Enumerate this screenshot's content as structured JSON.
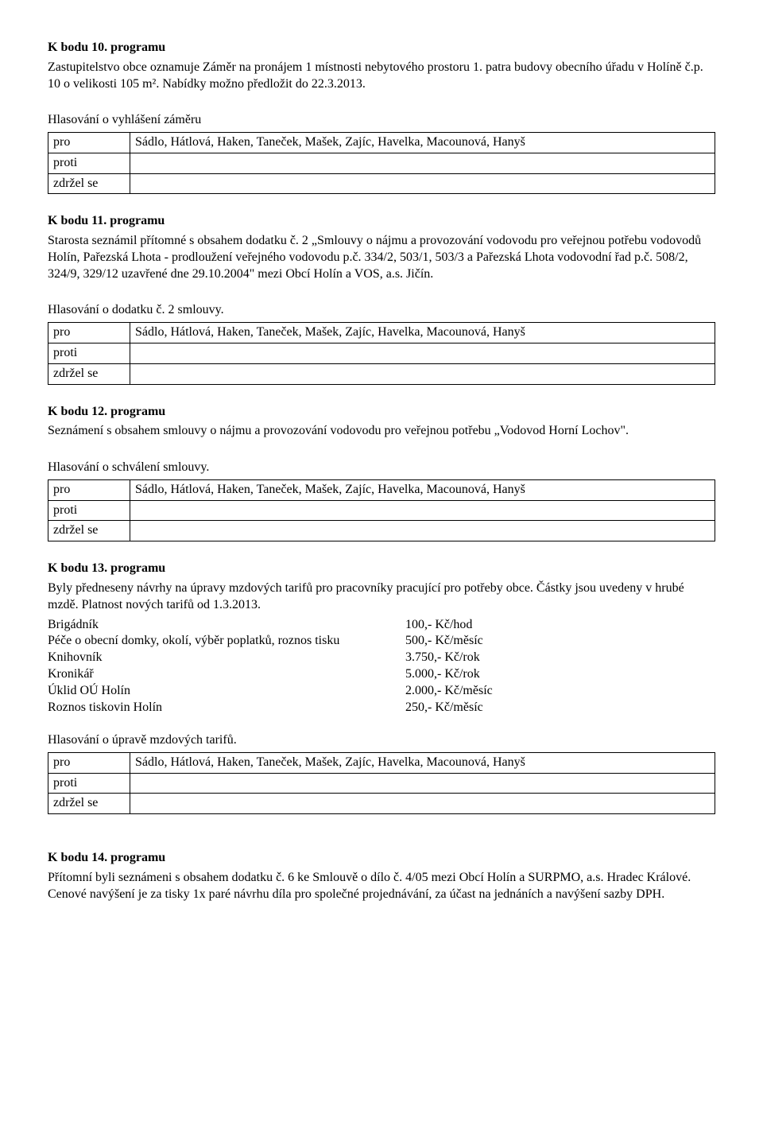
{
  "s10": {
    "heading": "K bodu 10. programu",
    "para": "Zastupitelstvo obce oznamuje Záměr na pronájem 1 místnosti nebytového prostoru 1. patra budovy obecního úřadu v Holíně č.p. 10 o velikosti 105 m². Nabídky možno předložit do 22.3.2013.",
    "voteTitle": "Hlasování o vyhlášení záměru",
    "vote": {
      "proLabel": "pro",
      "proValue": "Sádlo, Hátlová, Haken, Taneček, Mašek, Zajíc, Havelka, Macounová, Hanyš",
      "protiLabel": "proti",
      "protiValue": "",
      "zdrzelLabel": "zdržel se",
      "zdrzelValue": ""
    }
  },
  "s11": {
    "heading": "K bodu 11. programu",
    "para": "Starosta seznámil přítomné s obsahem dodatku č. 2 „Smlouvy o nájmu a provozování vodovodu pro veřejnou potřebu vodovodů Holín, Pařezská Lhota - prodloužení veřejného vodovodu p.č. 334/2, 503/1, 503/3 a Pařezská Lhota vodovodní řad p.č. 508/2, 324/9, 329/12 uzavřené dne 29.10.2004\" mezi Obcí Holín a VOS, a.s. Jičín.",
    "voteTitle": "Hlasování o dodatku č. 2 smlouvy.",
    "vote": {
      "proLabel": "pro",
      "proValue": "Sádlo, Hátlová, Haken, Taneček, Mašek, Zajíc, Havelka, Macounová, Hanyš",
      "protiLabel": "proti",
      "protiValue": "",
      "zdrzelLabel": "zdržel se",
      "zdrzelValue": ""
    }
  },
  "s12": {
    "heading": "K bodu 12. programu",
    "para": "Seznámení s obsahem smlouvy o nájmu a provozování vodovodu pro veřejnou potřebu „Vodovod Horní Lochov\".",
    "voteTitle": "Hlasování o schválení smlouvy.",
    "vote": {
      "proLabel": "pro",
      "proValue": "Sádlo, Hátlová, Haken, Taneček, Mašek, Zajíc, Havelka, Macounová, Hanyš",
      "protiLabel": "proti",
      "protiValue": "",
      "zdrzelLabel": "zdržel se",
      "zdrzelValue": ""
    }
  },
  "s13": {
    "heading": "K bodu 13. programu",
    "para": "Byly předneseny návrhy na úpravy mzdových tarifů pro pracovníky pracující pro potřeby obce. Částky jsou uvedeny v hrubé mzdě. Platnost nových tarifů od 1.3.2013.",
    "tariffs": [
      {
        "label": "Brigádník",
        "value": "100,- Kč/hod"
      },
      {
        "label": "Péče o obecní domky, okolí, výběr poplatků, roznos tisku",
        "value": "500,- Kč/měsíc"
      },
      {
        "label": "Knihovník",
        "value": "3.750,- Kč/rok"
      },
      {
        "label": "Kronikář",
        "value": "5.000,- Kč/rok"
      },
      {
        "label": "Úklid OÚ Holín",
        "value": "2.000,- Kč/měsíc"
      },
      {
        "label": "Roznos tiskovin Holín",
        "value": "250,- Kč/měsíc"
      }
    ],
    "voteTitle": "Hlasování o úpravě mzdových tarifů.",
    "vote": {
      "proLabel": "pro",
      "proValue": "Sádlo, Hátlová, Haken, Taneček, Mašek, Zajíc, Havelka, Macounová, Hanyš",
      "protiLabel": "proti",
      "protiValue": "",
      "zdrzelLabel": "zdržel se",
      "zdrzelValue": ""
    }
  },
  "s14": {
    "heading": "K bodu 14. programu",
    "para": "Přítomní byli seznámeni s obsahem dodatku č. 6 ke Smlouvě o dílo č. 4/05 mezi Obcí Holín a SURPMO, a.s. Hradec Králové. Cenové navýšení je za tisky 1x paré návrhu díla pro společné projednávání, za účast na jednáních a navýšení sazby DPH."
  }
}
